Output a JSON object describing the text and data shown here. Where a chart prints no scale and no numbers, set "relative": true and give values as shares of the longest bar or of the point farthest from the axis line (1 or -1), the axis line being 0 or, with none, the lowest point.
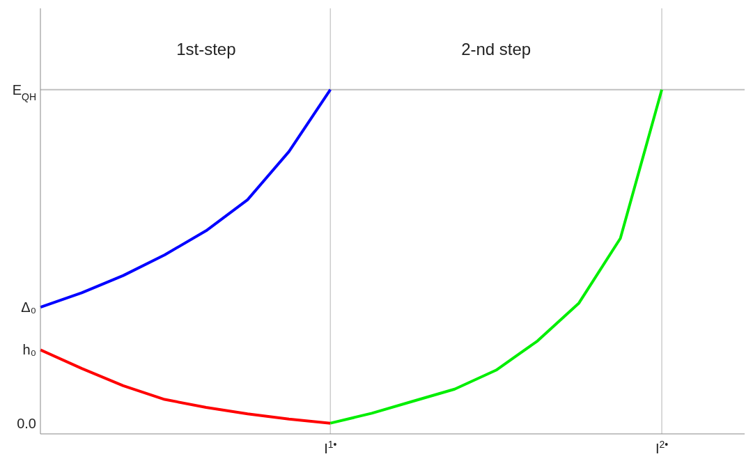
{
  "chart_data": {
    "type": "line",
    "relative": true,
    "categories": [
      null,
      null,
      null,
      null,
      null,
      null,
      null,
      "I$^{1•}$",
      null,
      null,
      null,
      null,
      null,
      null,
      null,
      "I$^{2•}$",
      null,
      null
    ],
    "grid": "x",
    "legend": false,
    "marker": "none",
    "line_style": "solid",
    "ref_lines": [
      {
        "axis": "y",
        "value": 1,
        "label": "E$_{QH}$",
        "color": "#c0c0c0"
      }
    ],
    "annotations": [
      "1st-step",
      "2-nd step",
      "Δ₀",
      "h₀",
      "0.0"
    ],
    "series": [
      {
        "color": "#0000ff",
        "values": [
          0.368,
          0.41,
          0.46,
          0.52,
          0.59,
          0.68,
          0.82,
          1,
          null,
          null,
          null,
          null,
          null,
          null,
          null,
          null,
          null,
          null
        ]
      },
      {
        "color": "#ff0000",
        "values": [
          0.244,
          0.19,
          0.14,
          0.1,
          0.077,
          0.058,
          0.043,
          0.031,
          null,
          null,
          null,
          null,
          null,
          null,
          null,
          null,
          null,
          null
        ]
      },
      {
        "color": "#00ee00",
        "values": [
          null,
          null,
          null,
          null,
          null,
          null,
          null,
          0.031,
          0.06,
          0.095,
          0.13,
          0.185,
          0.27,
          0.38,
          0.568,
          1,
          null,
          null
        ]
      }
    ]
  }
}
